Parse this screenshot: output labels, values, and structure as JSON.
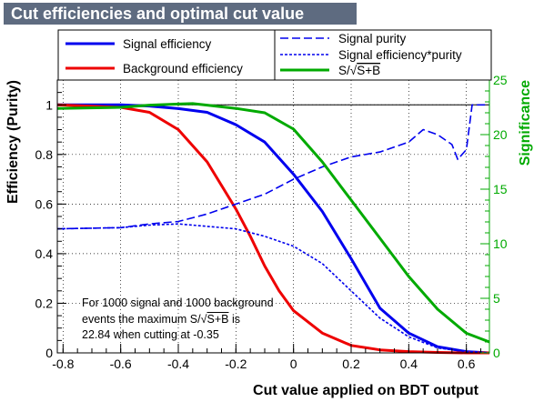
{
  "chart_data": {
    "type": "line",
    "title": "Cut efficiencies and optimal cut value",
    "xlabel": "Cut value applied on BDT output",
    "ylabel": "Efficiency (Purity)",
    "y2label": "Significance",
    "xlim": [
      -0.82,
      0.68
    ],
    "ylim": [
      0,
      1.1
    ],
    "y2lim": [
      0,
      25
    ],
    "x_ticks": [
      "-0.8",
      "-0.6",
      "-0.4",
      "-0.2",
      "0",
      "0.2",
      "0.4",
      "0.6"
    ],
    "y_ticks": [
      "0",
      "0.2",
      "0.4",
      "0.6",
      "0.8",
      "1"
    ],
    "y2_ticks": [
      "0",
      "5",
      "10",
      "15",
      "20",
      "25"
    ],
    "grid": true,
    "legend": [
      {
        "label": "Signal efficiency",
        "series": "signal_efficiency"
      },
      {
        "label": "Background efficiency",
        "series": "background_efficiency"
      },
      {
        "label": "Signal purity",
        "series": "signal_purity"
      },
      {
        "label": "Signal efficiency*purity",
        "series": "signal_efficiency_purity"
      },
      {
        "label_main": "S/",
        "label_over": "S+B",
        "series": "significance"
      }
    ],
    "series": [
      {
        "key": "signal_efficiency",
        "name": "Signal efficiency",
        "color": "#0000ee",
        "style": "solid",
        "axis": "left",
        "x": [
          -0.82,
          -0.6,
          -0.5,
          -0.4,
          -0.3,
          -0.2,
          -0.1,
          0.0,
          0.1,
          0.2,
          0.3,
          0.4,
          0.5,
          0.6,
          0.68
        ],
        "y": [
          1.0,
          1.0,
          0.995,
          0.985,
          0.97,
          0.92,
          0.85,
          0.72,
          0.57,
          0.38,
          0.18,
          0.08,
          0.025,
          0.005,
          0.0
        ]
      },
      {
        "key": "background_efficiency",
        "name": "Background efficiency",
        "color": "#ee0000",
        "style": "solid",
        "axis": "left",
        "x": [
          -0.82,
          -0.6,
          -0.5,
          -0.4,
          -0.3,
          -0.2,
          -0.15,
          -0.1,
          -0.05,
          0.0,
          0.1,
          0.2,
          0.3,
          0.4,
          0.5,
          0.6,
          0.68
        ],
        "y": [
          1.0,
          0.99,
          0.97,
          0.9,
          0.77,
          0.58,
          0.47,
          0.35,
          0.25,
          0.17,
          0.08,
          0.03,
          0.012,
          0.005,
          0.002,
          0.0,
          0.0
        ]
      },
      {
        "key": "signal_purity",
        "name": "Signal purity",
        "color": "#0000ee",
        "style": "longdash",
        "axis": "left",
        "x": [
          -0.82,
          -0.6,
          -0.5,
          -0.4,
          -0.3,
          -0.2,
          -0.1,
          0.0,
          0.1,
          0.2,
          0.3,
          0.4,
          0.45,
          0.5,
          0.55,
          0.57,
          0.6,
          0.62,
          0.68
        ],
        "y": [
          0.5,
          0.505,
          0.52,
          0.53,
          0.56,
          0.6,
          0.64,
          0.7,
          0.75,
          0.79,
          0.81,
          0.85,
          0.9,
          0.88,
          0.84,
          0.78,
          0.82,
          1.0,
          1.0
        ]
      },
      {
        "key": "signal_efficiency_purity",
        "name": "Signal efficiency*purity",
        "color": "#0000ee",
        "style": "shortdash",
        "axis": "left",
        "x": [
          -0.82,
          -0.6,
          -0.5,
          -0.4,
          -0.3,
          -0.2,
          -0.1,
          0.0,
          0.1,
          0.2,
          0.3,
          0.4,
          0.5,
          0.6,
          0.68
        ],
        "y": [
          0.5,
          0.505,
          0.515,
          0.52,
          0.51,
          0.5,
          0.47,
          0.43,
          0.36,
          0.25,
          0.14,
          0.065,
          0.02,
          0.005,
          0.0
        ]
      },
      {
        "key": "significance",
        "name": "S/sqrt(S+B)",
        "color": "#00aa00",
        "style": "solid",
        "axis": "right",
        "x": [
          -0.82,
          -0.6,
          -0.5,
          -0.4,
          -0.35,
          -0.3,
          -0.2,
          -0.1,
          0.0,
          0.1,
          0.2,
          0.3,
          0.4,
          0.5,
          0.6,
          0.68
        ],
        "y": [
          22.4,
          22.5,
          22.7,
          22.8,
          22.84,
          22.7,
          22.4,
          22.0,
          20.5,
          17.5,
          14.0,
          10.5,
          7.0,
          4.0,
          1.8,
          1.0
        ]
      }
    ],
    "annotation": {
      "line1": "For 1000 signal and 1000 background",
      "line2_prefix": "events the maximum S/",
      "line2_over": "S+B",
      "line2_suffix": " is",
      "line3": "22.84 when cutting at -0.35"
    }
  }
}
